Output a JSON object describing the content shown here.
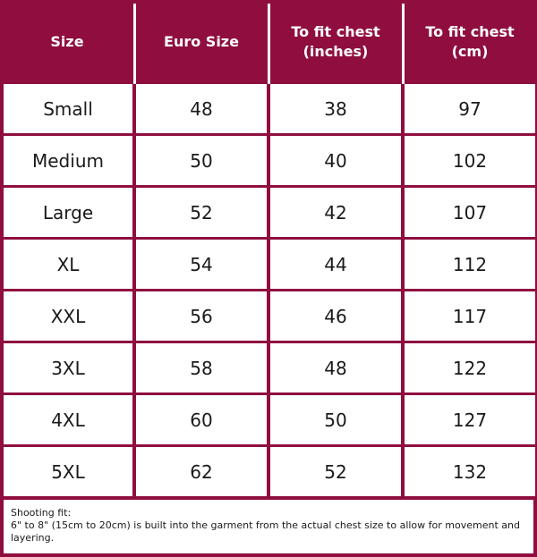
{
  "colors": {
    "brand": "#8f0e3f",
    "cell_background": "#ffffff",
    "text": "#1a1a1a",
    "header_text": "#ffffff"
  },
  "header": {
    "columns": [
      "Size",
      "Euro Size",
      "To fit chest\n(inches)",
      "To fit chest\n(cm)"
    ]
  },
  "rows": [
    [
      "Small",
      "48",
      "38",
      "97"
    ],
    [
      "Medium",
      "50",
      "40",
      "102"
    ],
    [
      "Large",
      "52",
      "42",
      "107"
    ],
    [
      "XL",
      "54",
      "44",
      "112"
    ],
    [
      "XXL",
      "56",
      "46",
      "117"
    ],
    [
      "3XL",
      "58",
      "48",
      "122"
    ],
    [
      "4XL",
      "60",
      "50",
      "127"
    ],
    [
      "5XL",
      "62",
      "52",
      "132"
    ]
  ],
  "note": {
    "title": "Shooting fit:",
    "body": "6\" to 8\" (15cm to 20cm) is built into the garment from the actual chest size to allow for movement and layering."
  }
}
